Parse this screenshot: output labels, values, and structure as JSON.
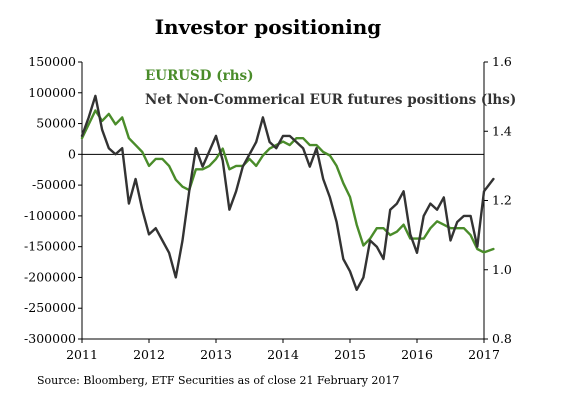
{
  "chart_data": {
    "type": "line",
    "title": "Investor positioning",
    "source": "Source: Bloomberg, ETF Securities as of close 21 February 2017",
    "x_ticks": [
      "2011",
      "2012",
      "2013",
      "2014",
      "2015",
      "2016",
      "2017"
    ],
    "xlim": [
      2011,
      2017
    ],
    "y_left": {
      "ticks": [
        "150000",
        "100000",
        "50000",
        "0",
        "-50000",
        "-100000",
        "-150000",
        "-200000",
        "-250000",
        "-300000"
      ],
      "ylim": [
        -300000,
        150000
      ]
    },
    "y_right": {
      "ticks": [
        "1.6",
        "1.4",
        "1.2",
        "1.0",
        "0.8"
      ],
      "ylim": [
        0.8,
        1.6
      ]
    },
    "series": [
      {
        "name": "EURUSD  (rhs)",
        "axis": "right",
        "color": "#4a8c2a",
        "x": [
          2011.0,
          2011.1,
          2011.2,
          2011.3,
          2011.4,
          2011.5,
          2011.6,
          2011.7,
          2011.8,
          2011.9,
          2012.0,
          2012.1,
          2012.2,
          2012.3,
          2012.4,
          2012.5,
          2012.6,
          2012.7,
          2012.8,
          2012.9,
          2013.0,
          2013.1,
          2013.2,
          2013.3,
          2013.4,
          2013.5,
          2013.6,
          2013.7,
          2013.8,
          2013.9,
          2014.0,
          2014.1,
          2014.2,
          2014.3,
          2014.4,
          2014.5,
          2014.6,
          2014.7,
          2014.8,
          2014.9,
          2015.0,
          2015.1,
          2015.2,
          2015.3,
          2015.4,
          2015.5,
          2015.6,
          2015.7,
          2015.8,
          2015.9,
          2016.0,
          2016.1,
          2016.2,
          2016.3,
          2016.4,
          2016.5,
          2016.6,
          2016.7,
          2016.8,
          2016.9,
          2017.0,
          2017.14
        ],
        "y": [
          1.38,
          1.42,
          1.46,
          1.43,
          1.45,
          1.42,
          1.44,
          1.38,
          1.36,
          1.34,
          1.3,
          1.32,
          1.32,
          1.3,
          1.26,
          1.24,
          1.23,
          1.29,
          1.29,
          1.3,
          1.32,
          1.35,
          1.29,
          1.3,
          1.3,
          1.32,
          1.3,
          1.33,
          1.35,
          1.36,
          1.37,
          1.36,
          1.38,
          1.38,
          1.36,
          1.36,
          1.34,
          1.33,
          1.3,
          1.25,
          1.21,
          1.13,
          1.07,
          1.09,
          1.12,
          1.12,
          1.1,
          1.11,
          1.13,
          1.09,
          1.09,
          1.09,
          1.12,
          1.14,
          1.13,
          1.12,
          1.12,
          1.12,
          1.1,
          1.06,
          1.05,
          1.06
        ]
      },
      {
        "name": "Net Non-Commerical EUR futures positions (lhs)",
        "axis": "left",
        "color": "#333333",
        "x": [
          2011.0,
          2011.1,
          2011.2,
          2011.3,
          2011.4,
          2011.5,
          2011.6,
          2011.7,
          2011.8,
          2011.9,
          2012.0,
          2012.1,
          2012.2,
          2012.3,
          2012.4,
          2012.5,
          2012.6,
          2012.7,
          2012.8,
          2012.9,
          2013.0,
          2013.1,
          2013.2,
          2013.3,
          2013.4,
          2013.5,
          2013.6,
          2013.7,
          2013.8,
          2013.9,
          2014.0,
          2014.1,
          2014.2,
          2014.3,
          2014.4,
          2014.5,
          2014.6,
          2014.7,
          2014.8,
          2014.9,
          2015.0,
          2015.1,
          2015.2,
          2015.3,
          2015.4,
          2015.5,
          2015.6,
          2015.7,
          2015.8,
          2015.9,
          2016.0,
          2016.1,
          2016.2,
          2016.3,
          2016.4,
          2016.5,
          2016.6,
          2016.7,
          2016.8,
          2016.9,
          2017.0,
          2017.14
        ],
        "y": [
          30000,
          60000,
          95000,
          40000,
          10000,
          0,
          10000,
          -80000,
          -40000,
          -90000,
          -130000,
          -120000,
          -140000,
          -160000,
          -200000,
          -140000,
          -60000,
          10000,
          -20000,
          5000,
          30000,
          -10000,
          -90000,
          -60000,
          -20000,
          0,
          20000,
          60000,
          20000,
          10000,
          30000,
          30000,
          20000,
          10000,
          -20000,
          10000,
          -40000,
          -70000,
          -110000,
          -170000,
          -190000,
          -220000,
          -200000,
          -140000,
          -150000,
          -170000,
          -90000,
          -80000,
          -60000,
          -130000,
          -160000,
          -100000,
          -80000,
          -90000,
          -70000,
          -140000,
          -110000,
          -100000,
          -100000,
          -150000,
          -60000,
          -40000
        ]
      }
    ]
  }
}
